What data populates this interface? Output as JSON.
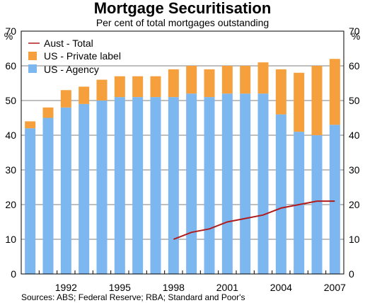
{
  "chart_data": {
    "type": "bar",
    "title": "Mortgage Securitisation",
    "subtitle": "Per cent of total mortgages outstanding",
    "ylabel_left": "%",
    "ylabel_right": "%",
    "ylim": [
      0,
      70
    ],
    "yticks": [
      0,
      10,
      20,
      30,
      40,
      50,
      60,
      70
    ],
    "grid": true,
    "stacked": true,
    "legend_position": "top-left",
    "categories": [
      "1990",
      "1991",
      "1992",
      "1993",
      "1994",
      "1995",
      "1996",
      "1997",
      "1998",
      "1999",
      "2000",
      "2001",
      "2002",
      "2003",
      "2004",
      "2005",
      "2006",
      "2007"
    ],
    "xtick_labels": [
      "1992",
      "1995",
      "1998",
      "2001",
      "2004",
      "2007"
    ],
    "series": [
      {
        "name": "US - Agency",
        "kind": "bar",
        "color": "#7db7f0",
        "values": [
          42,
          45,
          48,
          49,
          50,
          51,
          51,
          51,
          51,
          52,
          51,
          52,
          52,
          52,
          46,
          41,
          40,
          43
        ]
      },
      {
        "name": "US - Private label",
        "kind": "bar",
        "color": "#f5a03c",
        "values": [
          2,
          3,
          5,
          5,
          6,
          6,
          6,
          6,
          8,
          8,
          8,
          8,
          8,
          9,
          13,
          17,
          20,
          19
        ]
      },
      {
        "name": "Aust - Total",
        "kind": "line",
        "color": "#b01c1c",
        "x": [
          1998,
          1999,
          2000,
          2001,
          2002,
          2003,
          2004,
          2005,
          2006,
          2007
        ],
        "values": [
          10,
          12,
          13,
          15,
          16,
          17,
          19,
          20,
          21,
          21
        ]
      }
    ],
    "legend": [
      "Aust - Total",
      "US - Private label",
      "US - Agency"
    ]
  },
  "source": "Sources: ABS; Federal Reserve; RBA; Standard and Poor's"
}
